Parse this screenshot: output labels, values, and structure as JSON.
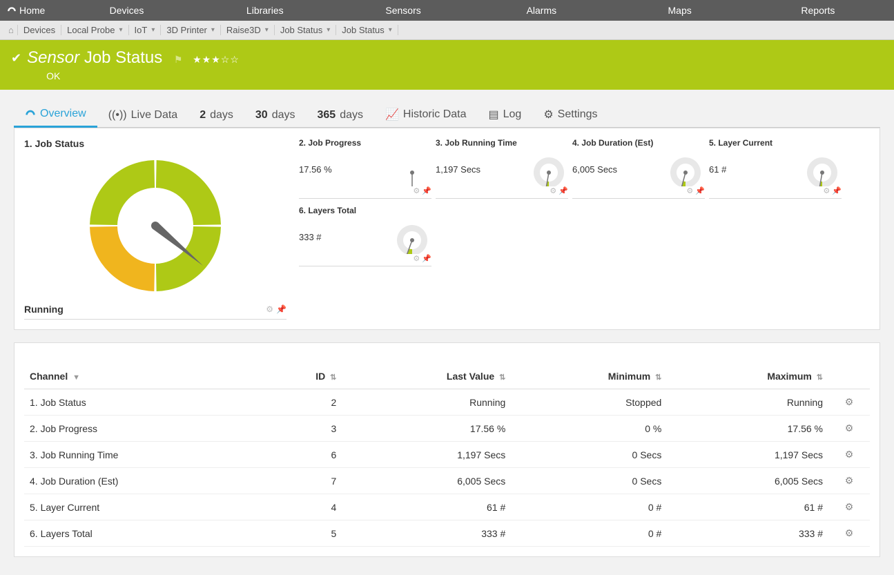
{
  "colors": {
    "accent_green": "#aec916",
    "accent_yellow": "#f0b51e",
    "accent_blue": "#2aa3d8",
    "topnav_bg": "#5c5c5c",
    "grey_icon": "#bbbbbb"
  },
  "topnav": {
    "home": "Home",
    "items": [
      "Devices",
      "Libraries",
      "Sensors",
      "Alarms",
      "Maps",
      "Reports"
    ]
  },
  "breadcrumb": {
    "items": [
      {
        "label": "Devices",
        "dropdown": false
      },
      {
        "label": "Local Probe",
        "dropdown": true
      },
      {
        "label": "IoT",
        "dropdown": true
      },
      {
        "label": "3D Printer",
        "dropdown": true
      },
      {
        "label": "Raise3D",
        "dropdown": true
      },
      {
        "label": "Job Status",
        "dropdown": true
      },
      {
        "label": "Job Status",
        "dropdown": true
      }
    ]
  },
  "sensor_header": {
    "prefix": "Sensor",
    "name": "Job Status",
    "status": "OK",
    "stars_filled": 3,
    "stars_total": 5
  },
  "tabs": {
    "overview": "Overview",
    "livedata": "Live Data",
    "ranges": [
      {
        "num": "2",
        "unit": "days"
      },
      {
        "num": "30",
        "unit": "days"
      },
      {
        "num": "365",
        "unit": "days"
      }
    ],
    "historic": "Historic Data",
    "log": "Log",
    "settings": "Settings"
  },
  "main_gauge": {
    "title": "1. Job Status",
    "value_label": "Running",
    "donut": {
      "outer_r": 95,
      "inner_r": 55,
      "segments": [
        {
          "start": 180,
          "end": 270,
          "color": "#f0b51e"
        },
        {
          "start": 270,
          "end": 360,
          "color": "#aec916"
        },
        {
          "start": 0,
          "end": 90,
          "color": "#aec916"
        },
        {
          "start": 90,
          "end": 180,
          "color": "#aec916"
        }
      ],
      "needle_angle": 130
    }
  },
  "mini_gauges": [
    {
      "title": "2. Job Progress",
      "value": "17.56 %",
      "fill_deg": 180
    },
    {
      "title": "3. Job Running Time",
      "value": "1,197 Secs",
      "fill_deg": 190
    },
    {
      "title": "4. Job Duration (Est)",
      "value": "6,005 Secs",
      "fill_deg": 195
    },
    {
      "title": "5. Layer Current",
      "value": "61 #",
      "fill_deg": 190
    },
    {
      "title": "6. Layers Total",
      "value": "333 #",
      "fill_deg": 200
    }
  ],
  "table": {
    "headers": {
      "channel": "Channel",
      "id": "ID",
      "last": "Last Value",
      "min": "Minimum",
      "max": "Maximum"
    },
    "rows": [
      {
        "channel": "1. Job Status",
        "id": "2",
        "last": "Running",
        "min": "Stopped",
        "max": "Running"
      },
      {
        "channel": "2. Job Progress",
        "id": "3",
        "last": "17.56 %",
        "min": "0 %",
        "max": "17.56 %"
      },
      {
        "channel": "3. Job Running Time",
        "id": "6",
        "last": "1,197 Secs",
        "min": "0 Secs",
        "max": "1,197 Secs"
      },
      {
        "channel": "4. Job Duration (Est)",
        "id": "7",
        "last": "6,005 Secs",
        "min": "0 Secs",
        "max": "6,005 Secs"
      },
      {
        "channel": "5. Layer Current",
        "id": "4",
        "last": "61 #",
        "min": "0 #",
        "max": "61 #"
      },
      {
        "channel": "6. Layers Total",
        "id": "5",
        "last": "333 #",
        "min": "0 #",
        "max": "333 #"
      }
    ]
  }
}
